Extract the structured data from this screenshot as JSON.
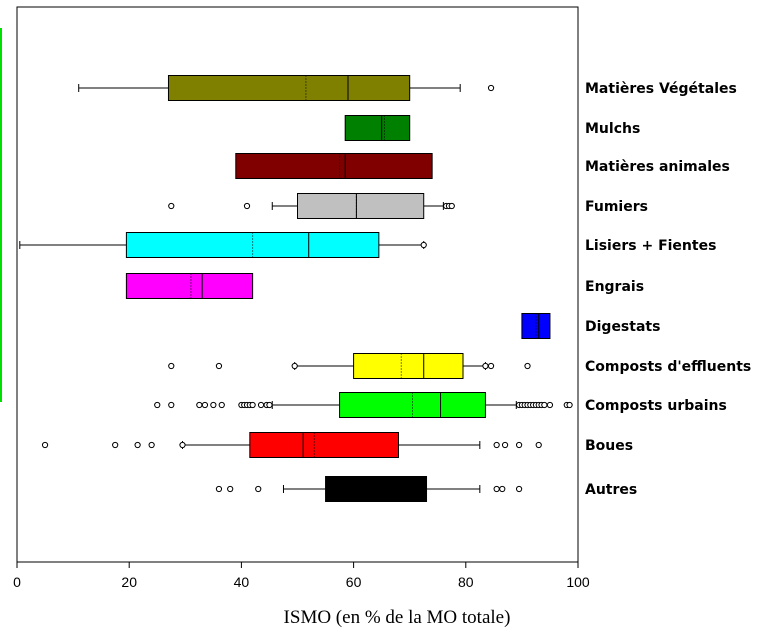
{
  "chart_data": {
    "type": "boxplot",
    "title": "",
    "xlabel": "ISMO (en % de la MO totale)",
    "ylabel": "",
    "xlim": [
      0,
      100
    ],
    "xticks": [
      0,
      20,
      40,
      60,
      80,
      100
    ],
    "orientation": "horizontal",
    "grid": false,
    "legend": "none",
    "series": [
      {
        "category": "Matières Végétales",
        "color": "#808000",
        "whisker_low": 11,
        "q1": 27,
        "median": 59,
        "mean": 51.5,
        "q3": 70,
        "whisker_high": 79,
        "outliers": [
          84.5
        ]
      },
      {
        "category": "Mulchs",
        "color": "#008000",
        "whisker_low": null,
        "q1": 58.5,
        "median": 65,
        "mean": 65.5,
        "q3": 70,
        "whisker_high": null,
        "outliers": []
      },
      {
        "category": "Matières animales",
        "color": "#800000",
        "whisker_low": null,
        "q1": 39,
        "median": 58.5,
        "mean": 57.5,
        "q3": 74,
        "whisker_high": null,
        "outliers": []
      },
      {
        "category": "Fumiers",
        "color": "#c0c0c0",
        "whisker_low": 45.5,
        "q1": 50,
        "median": 60.5,
        "mean": 60.5,
        "q3": 72.5,
        "whisker_high": 76,
        "outliers": [
          27.5,
          41,
          76.5,
          77,
          77.5
        ]
      },
      {
        "category": "Lisiers + Fientes",
        "color": "#00ffff",
        "whisker_low": 0.5,
        "q1": 19.5,
        "median": 52,
        "mean": 42,
        "q3": 64.5,
        "whisker_high": 72.5,
        "outliers": [
          72.5
        ]
      },
      {
        "category": "Engrais",
        "color": "#ff00ff",
        "whisker_low": null,
        "q1": 19.5,
        "median": 33,
        "mean": 31,
        "q3": 42,
        "whisker_high": null,
        "outliers": []
      },
      {
        "category": "Digestats",
        "color": "#0000ff",
        "whisker_low": null,
        "q1": 90,
        "median": 93,
        "mean": 92.5,
        "q3": 95,
        "whisker_high": null,
        "outliers": []
      },
      {
        "category": "Composts d'effluents",
        "color": "#ffff00",
        "whisker_low": 49.5,
        "q1": 60,
        "median": 72.5,
        "mean": 68.5,
        "q3": 79.5,
        "whisker_high": 83.5,
        "outliers": [
          27.5,
          36,
          49.5,
          83.5,
          84.5,
          91
        ]
      },
      {
        "category": "Composts urbains",
        "color": "#00ff00",
        "whisker_low": 45.5,
        "q1": 57.5,
        "median": 75.5,
        "mean": 70.5,
        "q3": 83.5,
        "whisker_high": 89,
        "outliers": [
          25,
          27.5,
          32.5,
          33.5,
          35,
          36.5,
          40,
          40.5,
          41,
          41.5,
          42,
          43.5,
          44.5,
          45,
          89.5,
          90,
          90.5,
          91,
          91.5,
          92,
          92.5,
          93,
          93.5,
          94,
          95,
          98,
          98.5
        ]
      },
      {
        "category": "Boues",
        "color": "#ff0000",
        "whisker_low": 29.5,
        "q1": 41.5,
        "median": 51,
        "mean": 53,
        "q3": 68,
        "whisker_high": 82.5,
        "outliers": [
          5,
          17.5,
          21.5,
          24,
          29.5,
          85.5,
          87,
          89.5,
          93
        ]
      },
      {
        "category": "Autres",
        "color": "#000000",
        "whisker_low": 47.5,
        "q1": 55,
        "median": 64,
        "mean": 64,
        "q3": 73,
        "whisker_high": 82.5,
        "outliers": [
          36,
          38,
          43,
          85.5,
          86.5,
          89.5
        ]
      }
    ]
  }
}
